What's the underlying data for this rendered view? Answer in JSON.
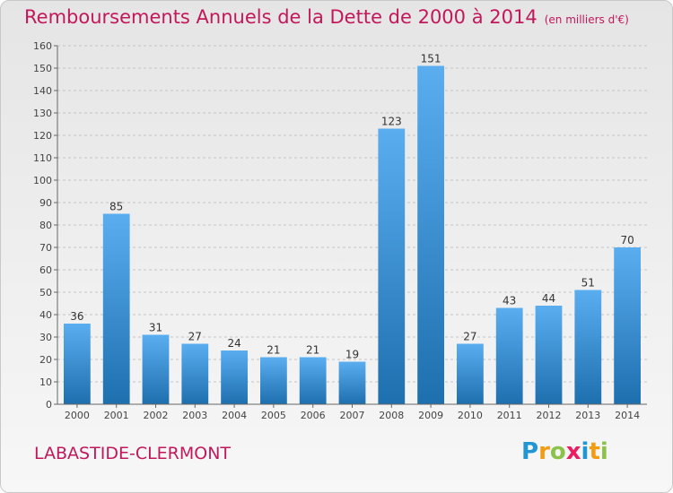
{
  "title": "Remboursements Annuels de la Dette de 2000 à 2014",
  "subtitle": "(en milliers d'€)",
  "commune": "LABASTIDE-CLERMONT",
  "logo": {
    "text": "Proxiti",
    "letters": [
      "P",
      "r",
      "o",
      "x",
      "i",
      "t",
      "i"
    ],
    "colors": [
      "#2196d3",
      "#f39c12",
      "#8bc34a",
      "#e91e63",
      "#2196d3",
      "#f39c12",
      "#8bc34a"
    ]
  },
  "colors": {
    "title": "#c2185b",
    "bar_top": "#5aaef0",
    "bar_bottom": "#1e6fae"
  },
  "chart_data": {
    "type": "bar",
    "categories": [
      "2000",
      "2001",
      "2002",
      "2003",
      "2004",
      "2005",
      "2006",
      "2007",
      "2008",
      "2009",
      "2010",
      "2011",
      "2012",
      "2013",
      "2014"
    ],
    "values": [
      36,
      85,
      31,
      27,
      24,
      21,
      21,
      19,
      123,
      151,
      27,
      43,
      44,
      51,
      70
    ],
    "ylim": [
      0,
      160
    ],
    "yticks": [
      0,
      10,
      20,
      30,
      40,
      50,
      60,
      70,
      80,
      90,
      100,
      110,
      120,
      130,
      140,
      150,
      160
    ],
    "grid": true,
    "xlabel": "",
    "ylabel": ""
  }
}
